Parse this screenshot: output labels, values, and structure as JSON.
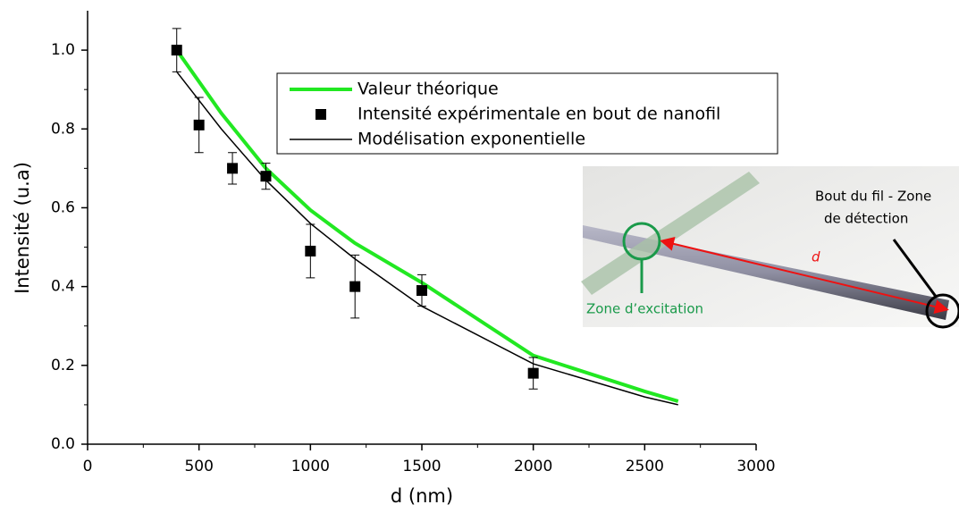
{
  "chart_data": {
    "type": "line",
    "xlabel": "d (nm)",
    "ylabel": "Intensité (u.a)",
    "xlim": [
      0,
      3000
    ],
    "ylim": [
      0,
      1.1
    ],
    "xticks": [
      0,
      500,
      1000,
      1500,
      2000,
      2500,
      3000
    ],
    "yticks": [
      {
        "value": 0,
        "label": "0.0"
      },
      0.2,
      0.4,
      0.6,
      0.8,
      {
        "value": 1,
        "label": "1.0"
      }
    ],
    "legend": "upper center",
    "series": [
      {
        "name": "Valeur théorique",
        "type": "line",
        "color": "#22e822",
        "x": [
          400,
          600,
          800,
          1000,
          1200,
          1500,
          2000,
          2500,
          2650
        ],
        "values": [
          1.0,
          0.84,
          0.7,
          0.594,
          0.51,
          0.41,
          0.225,
          0.134,
          0.109
        ]
      },
      {
        "name": "Intensité expérimentale en bout de nanofil",
        "type": "scatter",
        "color": "#000000",
        "x": [
          400,
          500,
          650,
          800,
          1000,
          1200,
          1500,
          2000
        ],
        "values": [
          1.0,
          0.81,
          0.7,
          0.68,
          0.49,
          0.4,
          0.39,
          0.18
        ],
        "errors": [
          0.055,
          0.07,
          0.04,
          0.033,
          0.068,
          0.08,
          0.04,
          0.04
        ]
      },
      {
        "name": "Modélisation exponentielle",
        "type": "line",
        "color": "#000000",
        "x": [
          400,
          600,
          800,
          1000,
          1200,
          1500,
          2000,
          2500,
          2650
        ],
        "values": [
          0.945,
          0.8,
          0.67,
          0.56,
          0.47,
          0.35,
          0.204,
          0.12,
          0.1
        ]
      }
    ],
    "annotations": [
      "Bout du fil - Zone",
      "de détection",
      "d",
      "Zone d’excitation"
    ]
  }
}
